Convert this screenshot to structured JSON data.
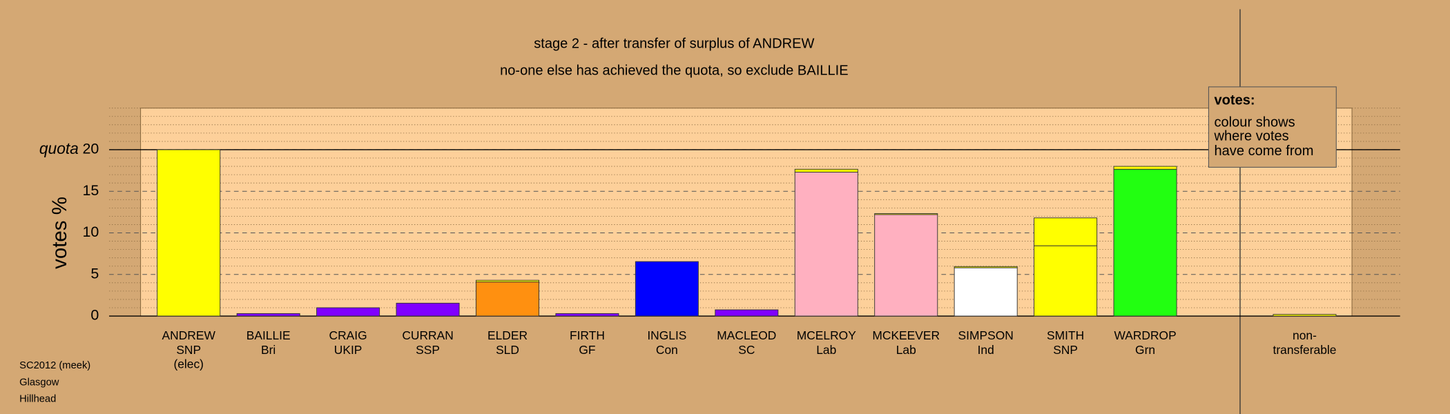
{
  "chart_data": {
    "type": "bar",
    "title": "stage 2 - after transfer of surplus of ANDREW",
    "subtitle": "no-one else has achieved the quota, so exclude BAILLIE",
    "y_label": "votes %",
    "quota_label": "quota",
    "quota": 20,
    "categories": [
      [
        "ANDREW",
        "SNP",
        "(elec)"
      ],
      [
        "BAILLIE",
        "Bri"
      ],
      [
        "CRAIG",
        "UKIP"
      ],
      [
        "CURRAN",
        "SSP"
      ],
      [
        "ELDER",
        "SLD"
      ],
      [
        "FIRTH",
        "GF"
      ],
      [
        "INGLIS",
        "Con"
      ],
      [
        "MACLEOD",
        "SC"
      ],
      [
        "MCELROY",
        "Lab"
      ],
      [
        "MCKEEVER",
        "Lab"
      ],
      [
        "SIMPSON",
        "Ind"
      ],
      [
        "SMITH",
        "SNP"
      ],
      [
        "WARDROP",
        "Grn"
      ],
      null,
      [
        "non-",
        "transferable"
      ]
    ],
    "series": [
      {
        "values": [
          20,
          0.3,
          1.0,
          1.55,
          4.1,
          0.3,
          6.55,
          0.75,
          17.3,
          12.2,
          5.8,
          8.45,
          17.65,
          null,
          null
        ],
        "colors": [
          "#ffff00",
          "#8000ff",
          "#8000ff",
          "#8000ff",
          "#ff9010",
          "#8000ff",
          "#0000ff",
          "#8000ff",
          "#ffb0c0",
          "#ffb0c0",
          "#ffffff",
          "#ffff00",
          "#22ff11",
          null,
          null
        ]
      },
      {
        "values": [
          null,
          0,
          0,
          0,
          0.2,
          0,
          0,
          0,
          0.35,
          0.12,
          0.15,
          3.35,
          0.35,
          null,
          0.2
        ],
        "color": "#ffff00"
      }
    ],
    "ylim": [
      0,
      25
    ],
    "yticks": [
      0,
      5,
      10,
      15,
      20
    ],
    "minor_yticks": [
      1,
      2,
      3,
      4,
      6,
      7,
      8,
      9,
      11,
      12,
      13,
      14,
      16,
      17,
      18,
      19,
      21,
      22,
      23,
      24,
      25
    ],
    "grid": true,
    "legend_note": {
      "title": "votes:",
      "lines": [
        "colour shows",
        "where votes",
        "have come from"
      ]
    },
    "notes": [
      "SC2012 (meek)",
      "Glasgow",
      "Hillhead"
    ]
  }
}
